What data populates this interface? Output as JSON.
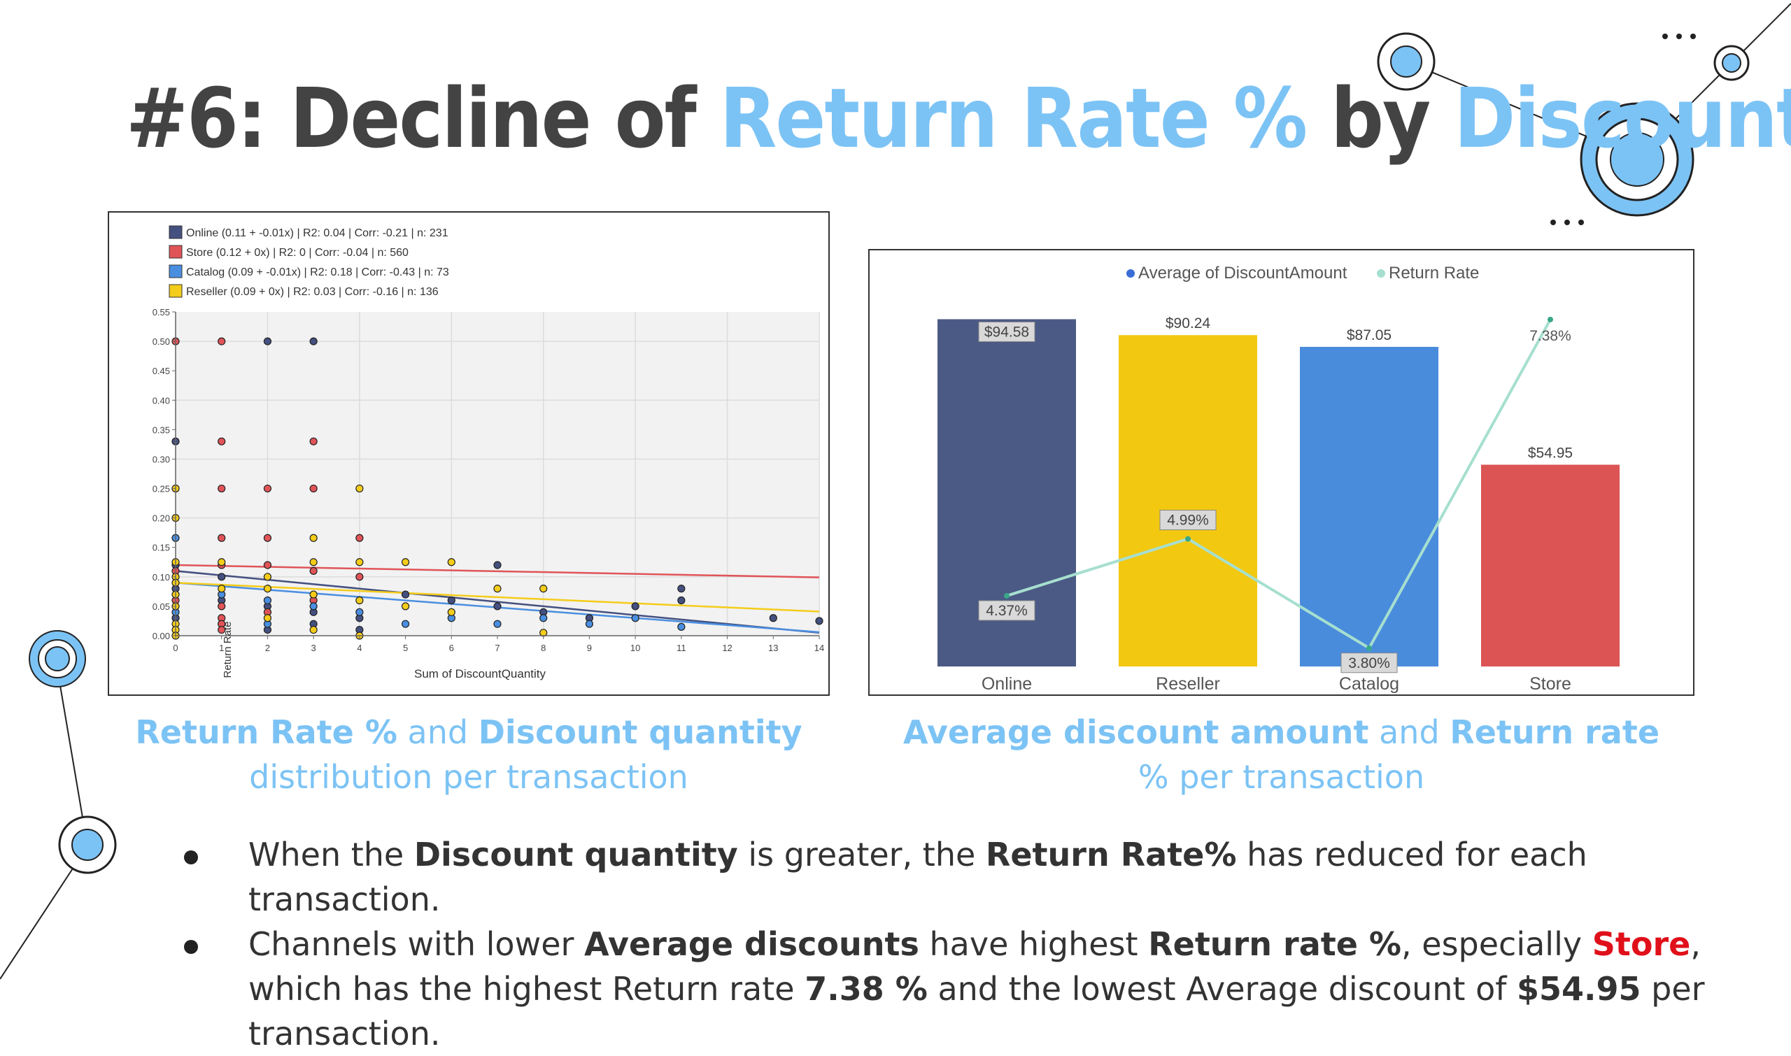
{
  "slide": {
    "title_prefix": "#6: Decline of ",
    "title_hl1": "Return Rate %",
    "title_mid": " by ",
    "title_hl2": "Discounts",
    "accent_color": "#7cc3f5",
    "text_color": "#434343"
  },
  "captions": {
    "left": {
      "b1": "Return Rate %",
      "t1": " and ",
      "b2": "Discount quantity",
      "t2": "distribution per transaction"
    },
    "right": {
      "b1": "Average discount amount",
      "t1": " and ",
      "b2": "Return rate",
      "t2": "% per transaction"
    }
  },
  "bullets": [
    {
      "t1": "When the ",
      "b1": "Discount quantity",
      "t2": " is greater, the ",
      "b2": "Return Rate%",
      "t3": " has reduced for each transaction."
    },
    {
      "t1": "Channels with lower ",
      "b1": "Average discounts",
      "t2": " have highest ",
      "b2": "Return rate %",
      "t3": ", especially ",
      "r1": "Store",
      "t4": ", which has the highest Return rate ",
      "b3": "7.38 %",
      "t5": " and the lowest Average discount of ",
      "b4": "$54.95",
      "t6": " per transaction."
    }
  ],
  "chart_data": [
    {
      "type": "scatter",
      "xlabel": "Sum of DiscountQuantity",
      "ylabel": "Return Rate",
      "xlim": [
        0,
        14
      ],
      "ylim": [
        0,
        0.55
      ],
      "x_ticks": [
        0,
        1,
        2,
        3,
        4,
        5,
        6,
        7,
        8,
        9,
        10,
        11,
        12,
        13,
        14
      ],
      "y_ticks": [
        "0.00",
        "0.05",
        "0.10",
        "0.15",
        "0.20",
        "0.25",
        "0.30",
        "0.35",
        "0.40",
        "0.45",
        "0.50",
        "0.55"
      ],
      "grid": true,
      "legend_position": "top-left",
      "series": [
        {
          "name": "Online (0.11 + -0.01x) | R2: 0.04 | Corr: -0.21 | n: 231",
          "color": "#44507f",
          "trend": {
            "intercept": 0.11,
            "slope": -0.0075
          },
          "points": [
            [
              2,
              0.5
            ],
            [
              3,
              0.5
            ],
            [
              0,
              0.33
            ],
            [
              0,
              0.12
            ],
            [
              1,
              0.1
            ],
            [
              0,
              0.08
            ],
            [
              1,
              0.06
            ],
            [
              2,
              0.05
            ],
            [
              3,
              0.04
            ],
            [
              4,
              0.03
            ],
            [
              5,
              0.07
            ],
            [
              6,
              0.06
            ],
            [
              7,
              0.12
            ],
            [
              7,
              0.05
            ],
            [
              8,
              0.04
            ],
            [
              9,
              0.03
            ],
            [
              10,
              0.05
            ],
            [
              11,
              0.08
            ],
            [
              11,
              0.06
            ],
            [
              13,
              0.03
            ],
            [
              14,
              0.025
            ],
            [
              0,
              0.03
            ],
            [
              1,
              0.02
            ],
            [
              2,
              0.01
            ],
            [
              3,
              0.02
            ],
            [
              4,
              0.01
            ]
          ]
        },
        {
          "name": "Store (0.12 + 0x) | R2: 0 | Corr: -0.04 | n: 560",
          "color": "#e05458",
          "trend": {
            "intercept": 0.12,
            "slope": -0.0015
          },
          "points": [
            [
              0,
              0.5
            ],
            [
              1,
              0.5
            ],
            [
              1,
              0.33
            ],
            [
              3,
              0.33
            ],
            [
              0,
              0.25
            ],
            [
              1,
              0.25
            ],
            [
              2,
              0.25
            ],
            [
              3,
              0.25
            ],
            [
              1,
              0.166
            ],
            [
              2,
              0.166
            ],
            [
              4,
              0.166
            ],
            [
              0,
              0.11
            ],
            [
              1,
              0.12
            ],
            [
              2,
              0.12
            ],
            [
              3,
              0.11
            ],
            [
              4,
              0.1
            ],
            [
              1,
              0.05
            ],
            [
              1,
              0.03
            ],
            [
              1,
              0.02
            ],
            [
              1,
              0.01
            ],
            [
              2,
              0.04
            ],
            [
              3,
              0.06
            ],
            [
              0,
              0.06
            ]
          ]
        },
        {
          "name": "Catalog (0.09 + -0.01x) | R2: 0.18 | Corr: -0.43 | n: 73",
          "color": "#4a8ee0",
          "trend": {
            "intercept": 0.09,
            "slope": -0.006
          },
          "points": [
            [
              0,
              0.166
            ],
            [
              1,
              0.07
            ],
            [
              2,
              0.06
            ],
            [
              3,
              0.05
            ],
            [
              4,
              0.04
            ],
            [
              5,
              0.02
            ],
            [
              6,
              0.03
            ],
            [
              7,
              0.02
            ],
            [
              8,
              0.03
            ],
            [
              9,
              0.02
            ],
            [
              10,
              0.03
            ],
            [
              11,
              0.015
            ],
            [
              0,
              0.04
            ],
            [
              2,
              0.02
            ]
          ]
        },
        {
          "name": "Reseller (0.09 + 0x) | R2: 0.03 | Corr: -0.16 | n: 136",
          "color": "#f4cc1a",
          "trend": {
            "intercept": 0.09,
            "slope": -0.0035
          },
          "points": [
            [
              0,
              0.25
            ],
            [
              4,
              0.25
            ],
            [
              0,
              0.2
            ],
            [
              0,
              0.125
            ],
            [
              1,
              0.125
            ],
            [
              2,
              0.1
            ],
            [
              3,
              0.166
            ],
            [
              3,
              0.125
            ],
            [
              4,
              0.125
            ],
            [
              5,
              0.125
            ],
            [
              6,
              0.125
            ],
            [
              0,
              0.1
            ],
            [
              0,
              0.09
            ],
            [
              0,
              0.07
            ],
            [
              0,
              0.05
            ],
            [
              0,
              0.02
            ],
            [
              0,
              0.01
            ],
            [
              1,
              0.08
            ],
            [
              2,
              0.08
            ],
            [
              3,
              0.07
            ],
            [
              4,
              0.06
            ],
            [
              5,
              0.05
            ],
            [
              6,
              0.04
            ],
            [
              7,
              0.08
            ],
            [
              8,
              0.08
            ],
            [
              8,
              0.005
            ],
            [
              0,
              0.0
            ],
            [
              2,
              0.03
            ],
            [
              3,
              0.01
            ],
            [
              4,
              0.0
            ]
          ]
        }
      ]
    },
    {
      "type": "bar",
      "legend": [
        "Average of DiscountAmount",
        "Return Rate"
      ],
      "legend_position": "top-center",
      "categories": [
        "Online",
        "Reseller",
        "Catalog",
        "Store"
      ],
      "series": [
        {
          "name": "Average of DiscountAmount",
          "type": "bar",
          "values": [
            94.58,
            90.24,
            87.05,
            54.95
          ],
          "labels": [
            "$94.58",
            "$90.24",
            "$87.05",
            "$54.95"
          ],
          "colors": [
            "#4b5a85",
            "#f2c811",
            "#4a8cdc",
            "#dc5454"
          ],
          "ylim": [
            0,
            100
          ]
        },
        {
          "name": "Return Rate",
          "type": "line",
          "color": "#a6dfcf",
          "values": [
            4.37,
            4.99,
            3.8,
            7.38
          ],
          "labels": [
            "4.37%",
            "4.99%",
            "3.80%",
            "7.38%"
          ],
          "ylim": [
            3.6,
            7.6
          ]
        }
      ]
    }
  ]
}
